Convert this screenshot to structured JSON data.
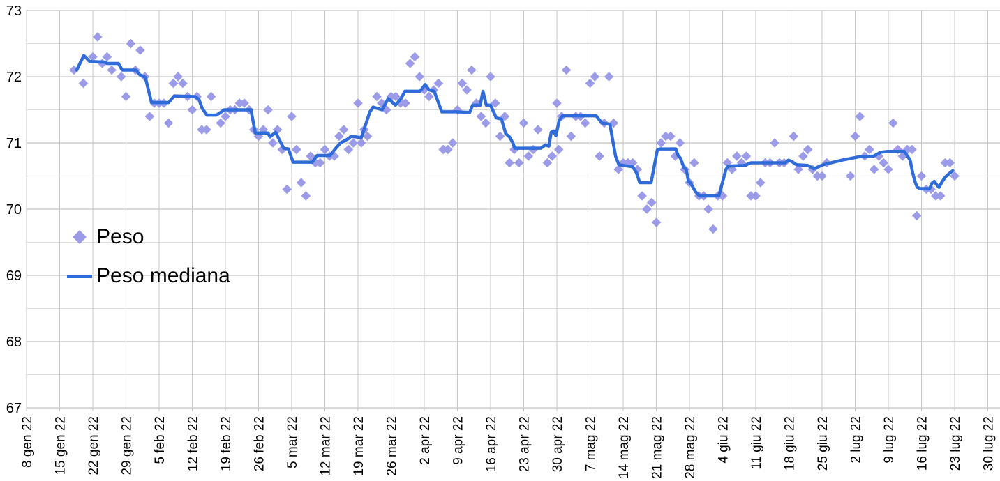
{
  "chart_data": {
    "type": "scatter",
    "title": "",
    "xlabel": "",
    "ylabel": "",
    "legend_position": "inside-left",
    "grid": true,
    "colors": {
      "background": "#ffffff",
      "grid_minor": "#dcdcdc",
      "grid_major": "#b3b3b3",
      "grid_vertical": "#c9c9c9",
      "axis_text": "#000000",
      "peso_marker": "#9b9be8",
      "mediana_line": "#2f6bd9"
    },
    "x_axis": {
      "unit": "weekly dates (Italian)",
      "days_per_tick": 7,
      "tick_labels": [
        "8 gen 22",
        "15 gen 22",
        "22 gen 22",
        "29 gen 22",
        "5 feb 22",
        "12 feb 22",
        "19 feb 22",
        "26 feb 22",
        "5 mar 22",
        "12 mar 22",
        "19 mar 22",
        "26 mar 22",
        "2 apr 22",
        "9 apr 22",
        "16 apr 22",
        "23 apr 22",
        "30 apr 22",
        "7 mag 22",
        "14 mag 22",
        "21 mag 22",
        "28 mag 22",
        "4 giu 22",
        "11 giu 22",
        "18 giu 22",
        "25 giu 22",
        "2 lug 22",
        "9 lug 22",
        "16 lug 22",
        "23 lug 22",
        "30 lug 22"
      ]
    },
    "y_axis": {
      "min": 67,
      "max": 73,
      "major_step": 1,
      "minor_step": 0.5,
      "tick_labels": [
        "73",
        "72",
        "71",
        "70",
        "69",
        "68",
        "67"
      ]
    },
    "series": [
      {
        "name": "Peso",
        "type": "scatter",
        "marker": "diamond",
        "color": "#9b9be8",
        "points_format": "[days_after_8_gen_22, kg]",
        "points": [
          [
            10,
            72.1
          ],
          [
            12,
            71.9
          ],
          [
            14,
            72.3
          ],
          [
            15,
            72.6
          ],
          [
            16,
            72.2
          ],
          [
            17,
            72.3
          ],
          [
            18,
            72.1
          ],
          [
            20,
            72.0
          ],
          [
            21,
            71.7
          ],
          [
            22,
            72.5
          ],
          [
            23,
            72.1
          ],
          [
            24,
            72.4
          ],
          [
            25,
            72.0
          ],
          [
            26,
            71.4
          ],
          [
            27,
            71.6
          ],
          [
            28,
            71.6
          ],
          [
            29,
            71.6
          ],
          [
            30,
            71.3
          ],
          [
            31,
            71.9
          ],
          [
            32,
            72.0
          ],
          [
            33,
            71.9
          ],
          [
            34,
            71.7
          ],
          [
            35,
            71.5
          ],
          [
            36,
            71.7
          ],
          [
            37,
            71.2
          ],
          [
            38,
            71.2
          ],
          [
            39,
            71.7
          ],
          [
            41,
            71.3
          ],
          [
            42,
            71.4
          ],
          [
            43,
            71.5
          ],
          [
            44,
            71.5
          ],
          [
            45,
            71.6
          ],
          [
            46,
            71.6
          ],
          [
            47,
            71.5
          ],
          [
            48,
            71.2
          ],
          [
            49,
            71.1
          ],
          [
            50,
            71.2
          ],
          [
            51,
            71.5
          ],
          [
            52,
            71.0
          ],
          [
            53,
            71.2
          ],
          [
            54,
            70.9
          ],
          [
            55,
            70.3
          ],
          [
            56,
            71.4
          ],
          [
            57,
            70.9
          ],
          [
            58,
            70.4
          ],
          [
            59,
            70.2
          ],
          [
            60,
            70.8
          ],
          [
            61,
            70.7
          ],
          [
            62,
            70.7
          ],
          [
            63,
            70.9
          ],
          [
            64,
            70.8
          ],
          [
            65,
            70.8
          ],
          [
            66,
            71.1
          ],
          [
            67,
            71.2
          ],
          [
            68,
            70.9
          ],
          [
            69,
            71.0
          ],
          [
            70,
            71.6
          ],
          [
            70.7,
            71.0
          ],
          [
            71.3,
            71.2
          ],
          [
            72,
            71.1
          ],
          [
            74,
            71.7
          ],
          [
            75,
            71.6
          ],
          [
            76,
            71.5
          ],
          [
            77,
            71.7
          ],
          [
            78,
            71.7
          ],
          [
            79,
            71.6
          ],
          [
            80,
            71.6
          ],
          [
            81,
            72.2
          ],
          [
            82,
            72.3
          ],
          [
            83,
            72.0
          ],
          [
            84,
            71.8
          ],
          [
            85,
            71.7
          ],
          [
            86,
            71.8
          ],
          [
            87,
            71.9
          ],
          [
            88,
            70.9
          ],
          [
            89,
            70.9
          ],
          [
            90,
            71.0
          ],
          [
            91,
            71.5
          ],
          [
            92,
            71.9
          ],
          [
            93,
            71.8
          ],
          [
            94,
            72.1
          ],
          [
            95,
            71.6
          ],
          [
            96,
            71.4
          ],
          [
            97,
            71.3
          ],
          [
            98,
            72.0
          ],
          [
            99,
            71.6
          ],
          [
            100,
            71.1
          ],
          [
            101,
            71.4
          ],
          [
            102,
            70.7
          ],
          [
            103,
            70.9
          ],
          [
            104,
            70.7
          ],
          [
            105,
            71.3
          ],
          [
            106,
            70.8
          ],
          [
            107,
            70.9
          ],
          [
            108,
            71.2
          ],
          [
            110,
            70.7
          ],
          [
            111,
            70.8
          ],
          [
            112,
            71.6
          ],
          [
            112.4,
            70.9
          ],
          [
            113,
            71.4
          ],
          [
            114,
            72.1
          ],
          [
            115,
            71.1
          ],
          [
            116,
            71.4
          ],
          [
            117,
            71.4
          ],
          [
            118,
            71.3
          ],
          [
            119,
            71.9
          ],
          [
            120,
            72.0
          ],
          [
            121,
            70.8
          ],
          [
            122,
            71.3
          ],
          [
            123,
            72.0
          ],
          [
            124,
            71.3
          ],
          [
            125,
            70.6
          ],
          [
            126,
            70.7
          ],
          [
            127,
            70.7
          ],
          [
            128,
            70.7
          ],
          [
            129,
            70.6
          ],
          [
            130,
            70.2
          ],
          [
            131,
            70.0
          ],
          [
            132,
            70.1
          ],
          [
            133,
            69.8
          ],
          [
            134,
            71.0
          ],
          [
            135,
            71.1
          ],
          [
            136,
            71.1
          ],
          [
            137,
            70.8
          ],
          [
            138,
            71.0
          ],
          [
            139,
            70.6
          ],
          [
            140,
            70.4
          ],
          [
            141,
            70.7
          ],
          [
            142,
            70.2
          ],
          [
            143,
            70.2
          ],
          [
            144,
            70.0
          ],
          [
            145,
            69.7
          ],
          [
            146,
            70.2
          ],
          [
            147,
            70.2
          ],
          [
            148,
            70.7
          ],
          [
            149,
            70.6
          ],
          [
            150,
            70.8
          ],
          [
            151,
            70.7
          ],
          [
            152,
            70.8
          ],
          [
            153,
            70.2
          ],
          [
            154,
            70.2
          ],
          [
            155,
            70.4
          ],
          [
            156,
            70.7
          ],
          [
            157,
            70.7
          ],
          [
            158,
            71.0
          ],
          [
            159,
            70.7
          ],
          [
            160,
            70.7
          ],
          [
            162,
            71.1
          ],
          [
            163,
            70.6
          ],
          [
            164,
            70.8
          ],
          [
            165,
            70.9
          ],
          [
            166,
            70.6
          ],
          [
            167,
            70.5
          ],
          [
            168,
            70.5
          ],
          [
            169,
            70.7
          ],
          [
            174,
            70.5
          ],
          [
            175,
            71.1
          ],
          [
            176,
            71.4
          ],
          [
            177,
            70.8
          ],
          [
            178,
            70.9
          ],
          [
            179,
            70.6
          ],
          [
            180,
            70.8
          ],
          [
            181,
            70.7
          ],
          [
            182,
            70.6
          ],
          [
            183,
            71.3
          ],
          [
            184,
            70.9
          ],
          [
            185,
            70.8
          ],
          [
            186,
            70.9
          ],
          [
            187,
            70.9
          ],
          [
            188,
            69.9
          ],
          [
            189,
            70.5
          ],
          [
            190,
            70.3
          ],
          [
            191,
            70.3
          ],
          [
            192,
            70.2
          ],
          [
            193,
            70.2
          ],
          [
            194,
            70.7
          ],
          [
            195,
            70.7
          ],
          [
            196,
            70.5
          ]
        ]
      },
      {
        "name": "Peso mediana",
        "type": "line",
        "color": "#2f6bd9",
        "width": 4.5,
        "points_format": "[days_after_8_gen_22, kg]",
        "points": [
          [
            10.6,
            72.1
          ],
          [
            12.1,
            72.32
          ],
          [
            13.3,
            72.23
          ],
          [
            16.5,
            72.22
          ],
          [
            17.0,
            72.2
          ],
          [
            19.4,
            72.2
          ],
          [
            20.2,
            72.1
          ],
          [
            23.1,
            72.1
          ],
          [
            23.9,
            72.03
          ],
          [
            25.1,
            71.99
          ],
          [
            26.4,
            71.61
          ],
          [
            30.0,
            71.61
          ],
          [
            31.2,
            71.71
          ],
          [
            35.6,
            71.7
          ],
          [
            36.4,
            71.66
          ],
          [
            37.1,
            71.52
          ],
          [
            38.1,
            71.42
          ],
          [
            40.1,
            71.42
          ],
          [
            41.8,
            71.5
          ],
          [
            47.4,
            71.5
          ],
          [
            48.3,
            71.15
          ],
          [
            51.0,
            71.15
          ],
          [
            51.4,
            71.09
          ],
          [
            52.6,
            71.16
          ],
          [
            54.3,
            70.92
          ],
          [
            55.3,
            70.91
          ],
          [
            56.3,
            70.71
          ],
          [
            60.3,
            70.71
          ],
          [
            61.4,
            70.81
          ],
          [
            64.1,
            70.81
          ],
          [
            65.1,
            70.9
          ],
          [
            66.3,
            71.0
          ],
          [
            68.1,
            71.07
          ],
          [
            68.5,
            71.1
          ],
          [
            70.7,
            71.08
          ],
          [
            72.5,
            71.47
          ],
          [
            73.2,
            71.54
          ],
          [
            75.1,
            71.5
          ],
          [
            76.4,
            71.67
          ],
          [
            77.9,
            71.57
          ],
          [
            79.1,
            71.67
          ],
          [
            79.9,
            71.78
          ],
          [
            83.1,
            71.78
          ],
          [
            84.2,
            71.88
          ],
          [
            85.0,
            71.8
          ],
          [
            86.1,
            71.78
          ],
          [
            86.5,
            71.7
          ],
          [
            87.7,
            71.47
          ],
          [
            90.9,
            71.47
          ],
          [
            93.6,
            71.46
          ],
          [
            94.2,
            71.57
          ],
          [
            95.8,
            71.57
          ],
          [
            96.4,
            71.78
          ],
          [
            97.1,
            71.57
          ],
          [
            98.0,
            71.57
          ],
          [
            99.2,
            71.38
          ],
          [
            100.3,
            71.36
          ],
          [
            101.2,
            71.14
          ],
          [
            102.0,
            71.09
          ],
          [
            102.7,
            71.0
          ],
          [
            103.1,
            70.92
          ],
          [
            108.6,
            70.92
          ],
          [
            109.6,
            70.97
          ],
          [
            110.3,
            70.95
          ],
          [
            110.8,
            71.16
          ],
          [
            111.3,
            71.18
          ],
          [
            111.8,
            71.11
          ],
          [
            112.5,
            71.34
          ],
          [
            113.2,
            71.41
          ],
          [
            120.3,
            71.41
          ],
          [
            121.5,
            71.3
          ],
          [
            123.2,
            71.28
          ],
          [
            124.4,
            70.8
          ],
          [
            125.1,
            70.67
          ],
          [
            128.0,
            70.64
          ],
          [
            128.8,
            70.55
          ],
          [
            129.5,
            70.4
          ],
          [
            131.9,
            70.4
          ],
          [
            133.2,
            70.89
          ],
          [
            133.7,
            70.91
          ],
          [
            137.1,
            70.91
          ],
          [
            137.6,
            70.81
          ],
          [
            138.1,
            70.77
          ],
          [
            138.8,
            70.63
          ],
          [
            139.3,
            70.6
          ],
          [
            139.8,
            70.42
          ],
          [
            140.3,
            70.39
          ],
          [
            141.3,
            70.26
          ],
          [
            142.1,
            70.2
          ],
          [
            146.2,
            70.2
          ],
          [
            147.7,
            70.6
          ],
          [
            148.2,
            70.65
          ],
          [
            151.8,
            70.66
          ],
          [
            152.3,
            70.68
          ],
          [
            153.0,
            70.7
          ],
          [
            160.2,
            70.7
          ],
          [
            160.9,
            70.74
          ],
          [
            161.6,
            70.72
          ],
          [
            162.6,
            70.67
          ],
          [
            165.0,
            70.66
          ],
          [
            166.3,
            70.61
          ],
          [
            168.2,
            70.67
          ],
          [
            172.2,
            70.74
          ],
          [
            175.8,
            70.79
          ],
          [
            178.9,
            70.8
          ],
          [
            180.4,
            70.86
          ],
          [
            181.7,
            70.87
          ],
          [
            185.4,
            70.87
          ],
          [
            186.6,
            70.74
          ],
          [
            187.1,
            70.56
          ],
          [
            187.6,
            70.42
          ],
          [
            188.1,
            70.33
          ],
          [
            188.8,
            70.31
          ],
          [
            190.7,
            70.31
          ],
          [
            191.2,
            70.39
          ],
          [
            191.7,
            70.42
          ],
          [
            192.2,
            70.37
          ],
          [
            192.7,
            70.33
          ],
          [
            193.4,
            70.42
          ],
          [
            194.1,
            70.49
          ],
          [
            194.9,
            70.54
          ],
          [
            195.6,
            70.58
          ]
        ]
      }
    ]
  },
  "legend": {
    "items": [
      {
        "label": "Peso",
        "marker": "diamond"
      },
      {
        "label": "Peso mediana",
        "marker": "line"
      }
    ]
  }
}
